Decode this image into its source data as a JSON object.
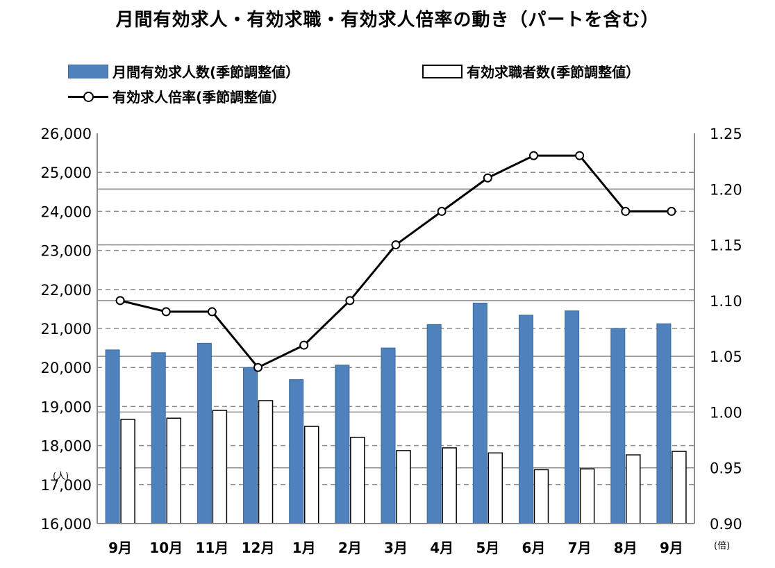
{
  "chart_data": {
    "type": "bar",
    "title": "月間有効求人・有効求職・有効求人倍率の動き（パートを含む）",
    "categories": [
      "9月",
      "10月",
      "11月",
      "12月",
      "1月",
      "2月",
      "3月",
      "4月",
      "5月",
      "6月",
      "7月",
      "8月",
      "9月"
    ],
    "series": [
      {
        "name": "月間有効求人数(季節調整値）",
        "type": "bar",
        "axis": "left",
        "color": "#4f81bd",
        "values": [
          20450,
          20380,
          20620,
          20000,
          19690,
          20060,
          20500,
          21100,
          21650,
          21340,
          21450,
          21000,
          21120
        ]
      },
      {
        "name": "有効求職者数(季節調整値）",
        "type": "bar",
        "axis": "left",
        "color": "#ffffff",
        "values": [
          18670,
          18700,
          18900,
          19150,
          18490,
          18210,
          17870,
          17940,
          17810,
          17380,
          17400,
          17760,
          17850
        ]
      },
      {
        "name": "有効求人倍率(季節調整値）",
        "type": "line",
        "axis": "right",
        "color": "#000000",
        "values": [
          1.1,
          1.09,
          1.09,
          1.04,
          1.06,
          1.1,
          1.15,
          1.18,
          1.21,
          1.23,
          1.23,
          1.18,
          1.18
        ]
      }
    ],
    "ylim_left": [
      16000,
      26000
    ],
    "left_ticks": [
      "16,000",
      "17,000",
      "18,000",
      "19,000",
      "20,000",
      "21,000",
      "22,000",
      "23,000",
      "24,000",
      "25,000",
      "26,000"
    ],
    "ylim_right": [
      0.9,
      1.25
    ],
    "right_ticks": [
      "0.90",
      "0.95",
      "1.00",
      "1.05",
      "1.10",
      "1.15",
      "1.20",
      "1.25"
    ],
    "ylabel_left": "(人)",
    "ylabel_right": "(倍)",
    "legend_position": "top",
    "grid": true
  }
}
